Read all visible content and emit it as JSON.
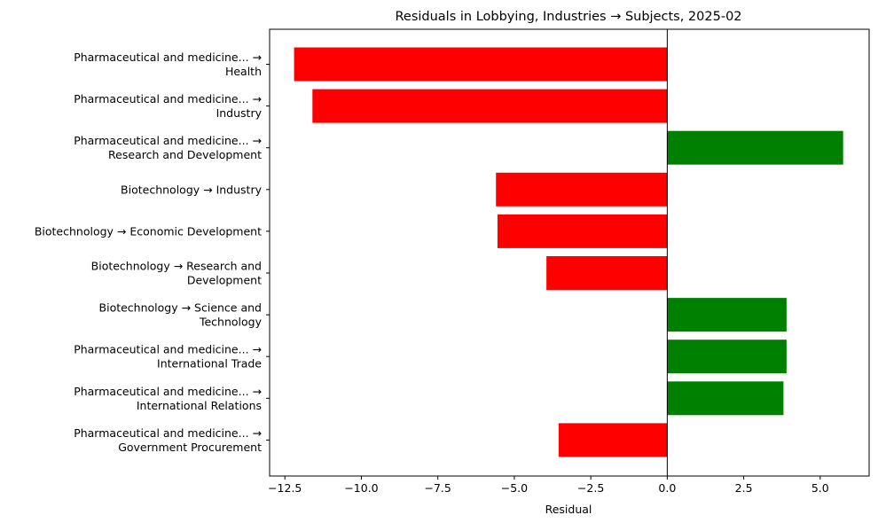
{
  "chart_data": {
    "type": "bar",
    "orientation": "horizontal",
    "title": "Residuals in Lobbying, Industries → Subjects, 2025-02",
    "xlabel": "Residual",
    "ylabel": "",
    "xlim": [
      -13.0,
      6.6
    ],
    "xticks": [
      -12.5,
      -10.0,
      -7.5,
      -5.0,
      -2.5,
      0.0,
      2.5,
      5.0
    ],
    "xtick_labels": [
      "−12.5",
      "−10.0",
      "−7.5",
      "−5.0",
      "−2.5",
      "0.0",
      "2.5",
      "5.0"
    ],
    "grid": false,
    "zero_line": true,
    "colors": {
      "positive": "#008000",
      "negative": "#ff0000",
      "axis": "#000000"
    },
    "categories": [
      {
        "lines": [
          "Pharmaceutical and medicine... →",
          "Health"
        ],
        "value": -12.2
      },
      {
        "lines": [
          "Pharmaceutical and medicine... →",
          "Industry"
        ],
        "value": -11.6
      },
      {
        "lines": [
          "Pharmaceutical and medicine... →",
          "Research and Development"
        ],
        "value": 5.75
      },
      {
        "lines": [
          "Biotechnology → Industry"
        ],
        "value": -5.6
      },
      {
        "lines": [
          "Biotechnology → Economic Development"
        ],
        "value": -5.55
      },
      {
        "lines": [
          "Biotechnology → Research and",
          "Development"
        ],
        "value": -3.95
      },
      {
        "lines": [
          "Biotechnology → Science and",
          "Technology"
        ],
        "value": 3.9
      },
      {
        "lines": [
          "Pharmaceutical and medicine... →",
          "International Trade"
        ],
        "value": 3.9
      },
      {
        "lines": [
          "Pharmaceutical and medicine... →",
          "International Relations"
        ],
        "value": 3.8
      },
      {
        "lines": [
          "Pharmaceutical and medicine... →",
          "Government Procurement"
        ],
        "value": -3.55
      }
    ]
  }
}
